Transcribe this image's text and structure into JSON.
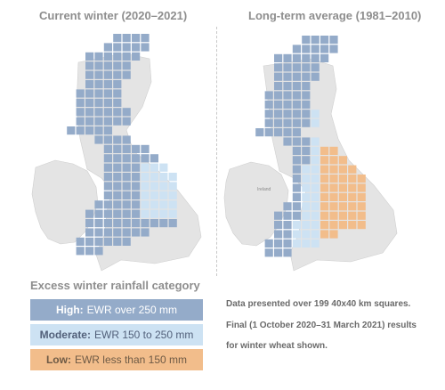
{
  "titles": {
    "left": "Current winter (2020–2021)",
    "right": "Long-term average (1981–2010)"
  },
  "map_labels": {
    "ireland": "Ireland"
  },
  "legend": {
    "title": "Excess winter rainfall category",
    "items": [
      {
        "category": "High:",
        "description": "EWR over 250 mm",
        "color": "#94abc9"
      },
      {
        "category": "Moderate:",
        "description": "EWR 150 to 250 mm",
        "color": "#cde2f3"
      },
      {
        "category": "Low:",
        "description": "EWR less than 150 mm",
        "color": "#f2bd8b"
      }
    ]
  },
  "notes": [
    "Data presented over 199 40x40 km squares.",
    "Final (1 October 2020–31 March 2021) results",
    "for winter wheat shown."
  ],
  "colors": {
    "high": "#94abc9",
    "moderate": "#cde2f3",
    "low": "#f2bd8b",
    "land": "#e4e4e4"
  }
}
